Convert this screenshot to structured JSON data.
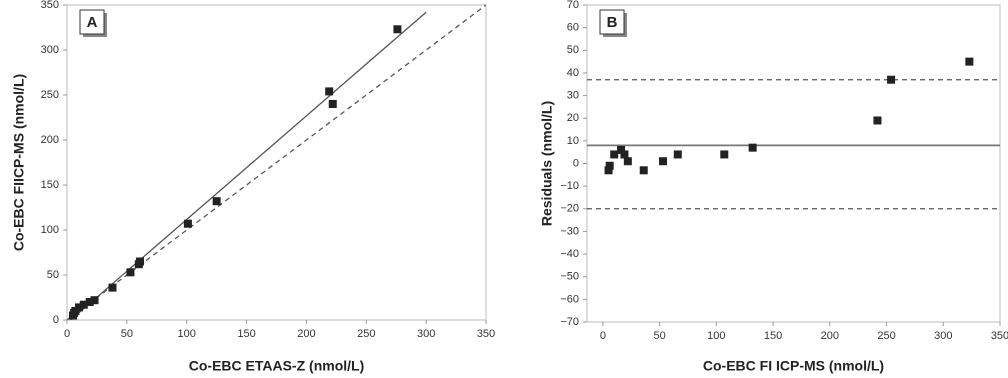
{
  "chart_data": [
    {
      "type": "scatter",
      "panel": "A",
      "xlabel": "Co-EBC ETAAS-Z (nmol/L)",
      "ylabel": "Co-EBC FIICP-MS (nmol/L)",
      "xlim": [
        0,
        350
      ],
      "ylim": [
        0,
        350
      ],
      "xticks": [
        0,
        50,
        100,
        150,
        200,
        250,
        300,
        350
      ],
      "yticks": [
        0,
        50,
        100,
        150,
        200,
        250,
        300,
        350
      ],
      "color": "#222222",
      "x": [
        5,
        6,
        7,
        10,
        14,
        19,
        23,
        38,
        53,
        60,
        61,
        101,
        125,
        219,
        222,
        276
      ],
      "values": [
        5,
        8,
        10,
        14,
        17,
        20,
        22,
        36,
        53,
        62,
        65,
        107,
        132,
        254,
        240,
        323
      ],
      "lines": [
        {
          "style": "solid",
          "color": "#555555",
          "x": [
            3,
            300
          ],
          "values": [
            0,
            342
          ]
        },
        {
          "style": "dashed",
          "color": "#555555",
          "x": [
            0,
            350
          ],
          "values": [
            0,
            350
          ]
        }
      ]
    },
    {
      "type": "scatter",
      "panel": "B",
      "xlabel": "Co-EBC FI ICP-MS (nmol/L)",
      "ylabel": "Residuals (nmol/L)",
      "xlim": [
        -14,
        350
      ],
      "ylim": [
        -70,
        70
      ],
      "xticks": [
        0,
        50,
        100,
        150,
        200,
        250,
        300,
        350
      ],
      "yticks": [
        {
          "value": -70,
          "label": "−70"
        },
        {
          "value": -60,
          "label": "−60"
        },
        {
          "value": -50,
          "label": "−50"
        },
        {
          "value": -40,
          "label": "−40"
        },
        {
          "value": -30,
          "label": "−30"
        },
        {
          "value": -20,
          "label": "−20"
        },
        {
          "value": -10,
          "label": "−10"
        },
        0,
        10,
        20,
        30,
        40,
        50,
        60,
        70
      ],
      "color": "#222222",
      "x": [
        5,
        6,
        10,
        16,
        19,
        22,
        36,
        53,
        66,
        107,
        132,
        242,
        254,
        323
      ],
      "values": [
        -3,
        -1,
        4,
        6,
        4,
        1,
        -3,
        1,
        4,
        4,
        7,
        19,
        37,
        45
      ],
      "hlines": [
        {
          "style": "solid",
          "color": "#777777",
          "value": 8
        },
        {
          "style": "dashed",
          "color": "#555555",
          "value": 37
        },
        {
          "style": "dashed",
          "color": "#555555",
          "value": -20
        }
      ]
    }
  ]
}
